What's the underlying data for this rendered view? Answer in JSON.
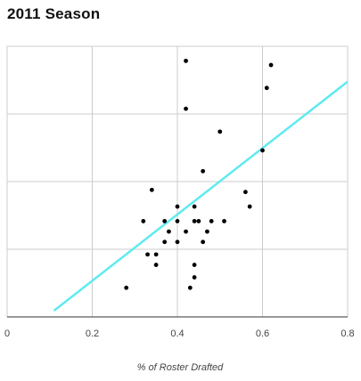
{
  "chart_data": {
    "type": "scatter",
    "title": "2011 Season",
    "xlabel": "% of Roster Drafted",
    "ylabel": "",
    "xlim": [
      0,
      0.8
    ],
    "x_ticks": [
      "0",
      "0.2",
      "0.4",
      "0.6",
      "0.8"
    ],
    "grid": true,
    "colors": {
      "points": "#000000",
      "trendline": "#5eeaf0",
      "grid": "#cccccc"
    },
    "points": [
      [
        0.42,
        0.163
      ],
      [
        0.62,
        0.161
      ],
      [
        0.61,
        0.15
      ],
      [
        0.42,
        0.14
      ],
      [
        0.5,
        0.129
      ],
      [
        0.6,
        0.12
      ],
      [
        0.46,
        0.11
      ],
      [
        0.34,
        0.101
      ],
      [
        0.56,
        0.1
      ],
      [
        0.44,
        0.093
      ],
      [
        0.4,
        0.093
      ],
      [
        0.57,
        0.093
      ],
      [
        0.32,
        0.086
      ],
      [
        0.37,
        0.086
      ],
      [
        0.4,
        0.086
      ],
      [
        0.44,
        0.086
      ],
      [
        0.45,
        0.086
      ],
      [
        0.48,
        0.086
      ],
      [
        0.51,
        0.086
      ],
      [
        0.38,
        0.081
      ],
      [
        0.42,
        0.081
      ],
      [
        0.47,
        0.081
      ],
      [
        0.37,
        0.076
      ],
      [
        0.4,
        0.076
      ],
      [
        0.46,
        0.076
      ],
      [
        0.33,
        0.07
      ],
      [
        0.35,
        0.07
      ],
      [
        0.35,
        0.065
      ],
      [
        0.44,
        0.065
      ],
      [
        0.44,
        0.059
      ],
      [
        0.28,
        0.054
      ],
      [
        0.43,
        0.054
      ]
    ],
    "trendline": {
      "x": [
        0.11,
        0.8
      ],
      "y": [
        0.043,
        0.153
      ]
    }
  }
}
